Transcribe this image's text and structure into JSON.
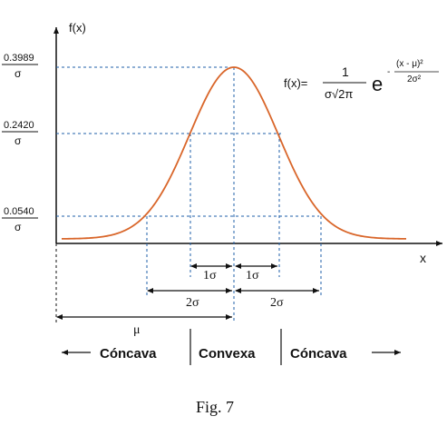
{
  "axes": {
    "y_label": "f(x)",
    "x_label": "x"
  },
  "y_ticks": [
    {
      "numerator": "0.3989",
      "denominator": "σ"
    },
    {
      "numerator": "0.2420",
      "denominator": "σ"
    },
    {
      "numerator": "0.0540",
      "denominator": "σ"
    }
  ],
  "formula": {
    "lhs": "f(x)=",
    "numerator": "1",
    "denominator": "σ√2π",
    "base": "e",
    "exponent_sign": "-",
    "exponent_numerator": "(x - μ)²",
    "exponent_denominator": "2σ²"
  },
  "intervals": {
    "one_sigma": "1σ",
    "two_sigma": "2σ",
    "mu": "μ"
  },
  "regions": {
    "left": "Cóncava",
    "middle": "Convexa",
    "right": "Cóncava"
  },
  "caption": "Fig. 7",
  "colors": {
    "curve": "#d9662a",
    "guides": "#1f5fa8",
    "axes": "#111111"
  }
}
